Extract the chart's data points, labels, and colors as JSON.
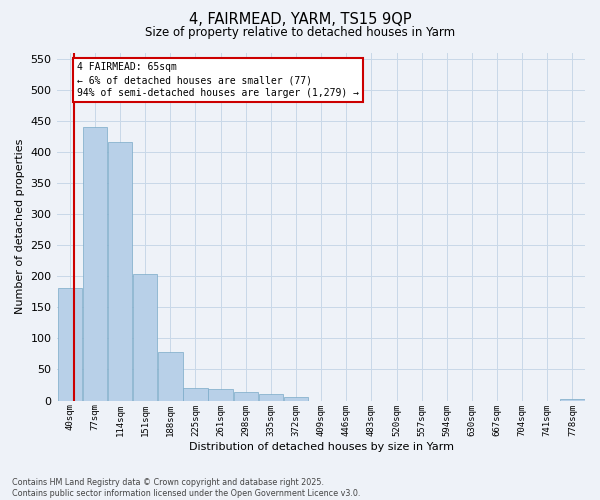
{
  "title": "4, FAIRMEAD, YARM, TS15 9QP",
  "subtitle": "Size of property relative to detached houses in Yarm",
  "xlabel": "Distribution of detached houses by size in Yarm",
  "ylabel": "Number of detached properties",
  "footer_line1": "Contains HM Land Registry data © Crown copyright and database right 2025.",
  "footer_line2": "Contains public sector information licensed under the Open Government Licence v3.0.",
  "annotation_line1": "4 FAIRMEAD: 65sqm",
  "annotation_line2": "← 6% of detached houses are smaller (77)",
  "annotation_line3": "94% of semi-detached houses are larger (1,279) →",
  "bar_color": "#b8d0e8",
  "bar_edge_color": "#7aaac8",
  "grid_color": "#c8d8e8",
  "vline_color": "#cc0000",
  "annotation_box_edge": "#cc0000",
  "bg_color": "#eef2f8",
  "categories": [
    "40sqm",
    "77sqm",
    "114sqm",
    "151sqm",
    "188sqm",
    "225sqm",
    "261sqm",
    "298sqm",
    "335sqm",
    "372sqm",
    "409sqm",
    "446sqm",
    "483sqm",
    "520sqm",
    "557sqm",
    "594sqm",
    "630sqm",
    "667sqm",
    "704sqm",
    "741sqm",
    "778sqm"
  ],
  "values": [
    181,
    440,
    416,
    204,
    78,
    20,
    19,
    14,
    10,
    5,
    0,
    0,
    0,
    0,
    0,
    0,
    0,
    0,
    0,
    0,
    3
  ],
  "ylim": [
    0,
    560
  ],
  "yticks": [
    0,
    50,
    100,
    150,
    200,
    250,
    300,
    350,
    400,
    450,
    500,
    550
  ],
  "property_sqm": 65,
  "bin_edges": [
    40,
    77,
    114,
    151,
    188,
    225,
    261,
    298,
    335,
    372,
    409,
    446,
    483,
    520,
    557,
    594,
    630,
    667,
    704,
    741,
    778,
    815
  ]
}
